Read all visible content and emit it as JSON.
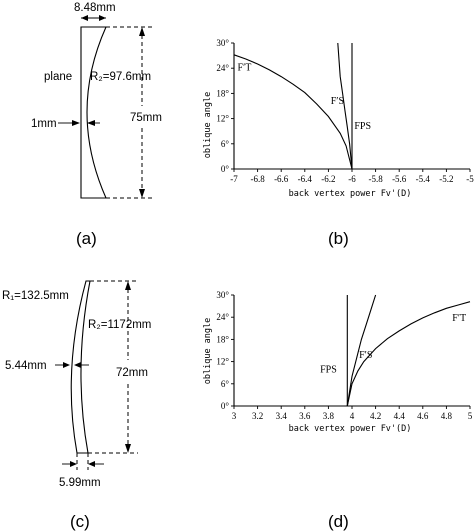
{
  "panel_a": {
    "top_dimension": "8.48mm",
    "left_label": "plane",
    "radius_label": "R₂=97.6mm",
    "center_thickness": "1mm",
    "height": "75mm",
    "caption": "(a)"
  },
  "panel_c": {
    "r1_label": "R₁=132.5mm",
    "r2_label": "R₂=1172mm",
    "thickness_left": "5.44mm",
    "height": "72mm",
    "bottom_dimension": "5.99mm",
    "caption": "(c)"
  },
  "chart_data": [
    {
      "id": "b",
      "type": "line",
      "caption": "(b)",
      "ylabel": "oblique angle",
      "xlabel": "back vertex power Fv'(D)",
      "xlim": [
        -7,
        -5
      ],
      "ylim": [
        0,
        30
      ],
      "x_ticks": [
        "-7",
        "-6.8",
        "-6.6",
        "-6.4",
        "-6.2",
        "-6",
        "-5.8",
        "-5.6",
        "-5.4",
        "-5.2",
        "-5"
      ],
      "y_ticks": [
        "0°",
        "6°",
        "12°",
        "18°",
        "24°",
        "30°"
      ],
      "series": [
        {
          "name": "F′T",
          "x": [
            -6.0,
            -6.05,
            -6.1,
            -6.2,
            -6.3,
            -6.4,
            -6.5,
            -6.6,
            -6.7,
            -6.8,
            -6.9,
            -7.0
          ],
          "y": [
            0,
            5.5,
            8.5,
            12.5,
            15.5,
            18.2,
            20.2,
            22.0,
            23.6,
            25.0,
            26.2,
            27.2
          ]
        },
        {
          "name": "F′S",
          "x": [
            -6.0,
            -6.02,
            -6.04,
            -6.06,
            -6.08,
            -6.1,
            -6.12
          ],
          "y": [
            0,
            6,
            10,
            14,
            18,
            22,
            30
          ]
        },
        {
          "name": "FPS",
          "x": [
            -6.0,
            -6.0
          ],
          "y": [
            0,
            30
          ]
        }
      ]
    },
    {
      "id": "d",
      "type": "line",
      "caption": "(d)",
      "ylabel": "oblique angle",
      "xlabel": "back vertex power Fv'(D)",
      "xlim": [
        3,
        5
      ],
      "ylim": [
        0,
        30
      ],
      "x_ticks": [
        "3",
        "3.2",
        "3.4",
        "3.6",
        "3.8",
        "4",
        "4.2",
        "4.4",
        "4.6",
        "4.8",
        "5"
      ],
      "y_ticks": [
        "0°",
        "6°",
        "12°",
        "18°",
        "24°",
        "30°"
      ],
      "series": [
        {
          "name": "F′T",
          "x": [
            3.96,
            4.0,
            4.05,
            4.1,
            4.2,
            4.3,
            4.4,
            4.5,
            4.6,
            4.7,
            4.8,
            4.9,
            5.0
          ],
          "y": [
            0,
            6,
            9.5,
            12,
            15.5,
            18.2,
            20.3,
            22.2,
            23.8,
            25.2,
            26.4,
            27.3,
            28.2
          ]
        },
        {
          "name": "F′S",
          "x": [
            3.96,
            4.0,
            4.04,
            4.08,
            4.12,
            4.16,
            4.2
          ],
          "y": [
            0,
            8,
            13,
            18,
            22,
            26,
            30
          ]
        },
        {
          "name": "FPS",
          "x": [
            3.96,
            3.96
          ],
          "y": [
            0,
            30
          ]
        }
      ]
    }
  ]
}
